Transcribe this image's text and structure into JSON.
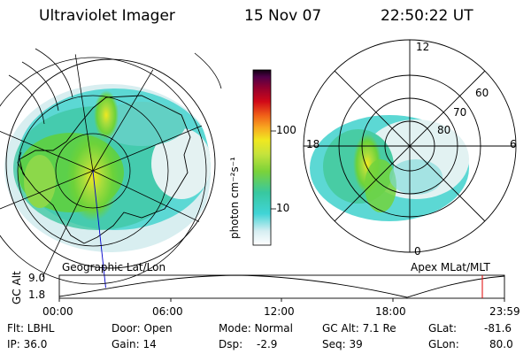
{
  "header": {
    "instrument": "Ultraviolet Imager",
    "date": "15 Nov 07",
    "time": "22:50:22 UT"
  },
  "colorbar": {
    "unit_label": "photon cm⁻²s⁻¹",
    "tick_100": "100",
    "tick_10": "10",
    "colors": [
      "#ffffff",
      "#bfe8ee",
      "#40d4d6",
      "#38c8a0",
      "#7ad23a",
      "#c6e33c",
      "#f0e820",
      "#f8a820",
      "#f06018",
      "#d00818",
      "#900030",
      "#500048",
      "#100010"
    ]
  },
  "left_panel": {
    "label": "Geographic Lat/Lon"
  },
  "right_panel": {
    "label": "Apex MLat/MLT",
    "mlt_12": "12",
    "mlt_18": "18",
    "mlt_6": "6",
    "mlt_0": "0",
    "lat_60": "60",
    "lat_70": "70",
    "lat_80": "80"
  },
  "altitude_plot": {
    "ylabel": "GC Alt",
    "y_max": "9.0",
    "y_min": "1.8",
    "x_ticks": [
      "00:00",
      "06:00",
      "12:00",
      "18:00",
      "23:59"
    ],
    "marker_time_hours": 22.84,
    "marker_color": "#e00000"
  },
  "status": {
    "flt": "Flt: LBHL",
    "ip": "IP: 36.0",
    "door": "Door: Open",
    "gain": "Gain: 14",
    "mode": "Mode: Normal",
    "dsp_label": "Dsp:",
    "dsp_value": "-2.9",
    "gcalt": "GC Alt: 7.1 Re",
    "seq": "Seq: 39",
    "glat_label": "GLat:",
    "glat_value": "-81.6",
    "glon_label": "GLon:",
    "glon_value": "80.0"
  }
}
